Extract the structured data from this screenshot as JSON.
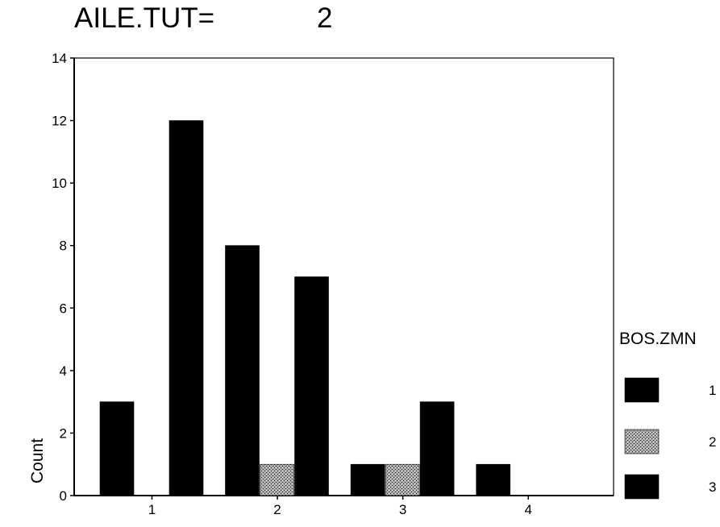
{
  "chart_data": {
    "type": "bar",
    "title_label": "AILE.TUT=",
    "title_value": "2",
    "ylabel": "Count",
    "xlabel": "",
    "categories": [
      "1",
      "2",
      "3",
      "4"
    ],
    "yticks": [
      "0",
      "2",
      "4",
      "6",
      "8",
      "10",
      "12",
      "14"
    ],
    "ylim": [
      0,
      14
    ],
    "legend_title": "BOS.ZMN",
    "legend_position": "right",
    "grid": false,
    "series": [
      {
        "name": "1",
        "color": "#000000",
        "pattern": "solid",
        "values": [
          3,
          8,
          1,
          1
        ]
      },
      {
        "name": "2",
        "color": "#8a8a8a",
        "pattern": "stipple",
        "values": [
          0,
          1,
          1,
          0
        ]
      },
      {
        "name": "3",
        "color": "#000000",
        "pattern": "solid",
        "values": [
          12,
          7,
          3,
          0
        ]
      }
    ]
  }
}
